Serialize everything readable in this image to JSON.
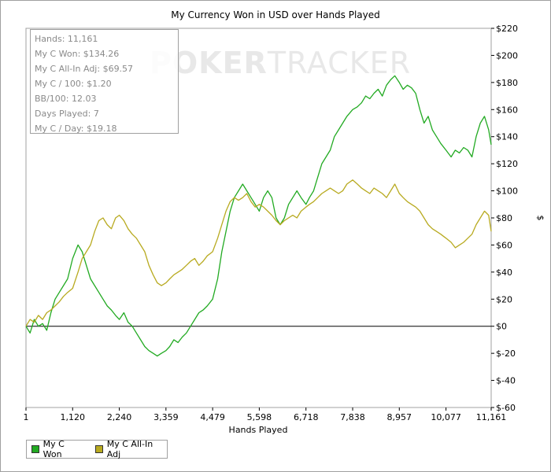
{
  "chart_data": {
    "type": "line",
    "title": "My Currency Won in USD over Hands Played",
    "xlabel": "Hands Played",
    "ylabel": "$",
    "xlim": [
      1,
      11161
    ],
    "ylim": [
      -60,
      220
    ],
    "xticks": [
      1,
      1120,
      2240,
      3359,
      4479,
      5598,
      6718,
      7838,
      8957,
      10077,
      11161
    ],
    "xtick_labels": [
      "1",
      "1,120",
      "2,240",
      "3,359",
      "4,479",
      "5,598",
      "6,718",
      "7,838",
      "8,957",
      "10,077",
      "11,161"
    ],
    "yticks": [
      -60,
      -40,
      -20,
      0,
      20,
      40,
      60,
      80,
      100,
      120,
      140,
      160,
      180,
      200,
      220
    ],
    "ytick_labels": [
      "$-60",
      "$-40",
      "$-20",
      "$0",
      "$20",
      "$40",
      "$60",
      "$80",
      "$100",
      "$120",
      "$140",
      "$160",
      "$180",
      "$200",
      "$220"
    ],
    "grid": false,
    "legend_position": "bottom-left",
    "series": [
      {
        "name": "My C Won",
        "color": "#22aa22",
        "x": [
          1,
          100,
          200,
          300,
          400,
          500,
          600,
          700,
          800,
          900,
          1000,
          1120,
          1250,
          1350,
          1450,
          1550,
          1650,
          1750,
          1850,
          1950,
          2050,
          2150,
          2240,
          2350,
          2450,
          2550,
          2650,
          2750,
          2850,
          2950,
          3050,
          3150,
          3250,
          3359,
          3450,
          3550,
          3650,
          3750,
          3850,
          3950,
          4050,
          4150,
          4250,
          4350,
          4479,
          4600,
          4700,
          4800,
          4900,
          5000,
          5100,
          5200,
          5300,
          5400,
          5500,
          5598,
          5700,
          5800,
          5900,
          6000,
          6100,
          6200,
          6300,
          6400,
          6500,
          6600,
          6718,
          6800,
          6900,
          7000,
          7100,
          7200,
          7300,
          7400,
          7500,
          7600,
          7700,
          7838,
          7950,
          8050,
          8150,
          8250,
          8350,
          8450,
          8550,
          8650,
          8750,
          8850,
          8957,
          9050,
          9150,
          9250,
          9350,
          9450,
          9550,
          9650,
          9750,
          9850,
          9950,
          10077,
          10200,
          10300,
          10400,
          10500,
          10600,
          10700,
          10800,
          10900,
          11000,
          11100,
          11161
        ],
        "y": [
          0,
          -5,
          5,
          0,
          2,
          -3,
          10,
          20,
          25,
          30,
          35,
          50,
          60,
          55,
          45,
          35,
          30,
          25,
          20,
          15,
          12,
          8,
          5,
          10,
          3,
          0,
          -5,
          -10,
          -15,
          -18,
          -20,
          -22,
          -20,
          -18,
          -15,
          -10,
          -12,
          -8,
          -5,
          0,
          5,
          10,
          12,
          15,
          20,
          35,
          55,
          70,
          85,
          95,
          100,
          105,
          100,
          95,
          90,
          85,
          95,
          100,
          95,
          80,
          75,
          80,
          90,
          95,
          100,
          95,
          90,
          95,
          100,
          110,
          120,
          125,
          130,
          140,
          145,
          150,
          155,
          160,
          162,
          165,
          170,
          168,
          172,
          175,
          170,
          178,
          182,
          185,
          180,
          175,
          178,
          176,
          172,
          160,
          150,
          155,
          145,
          140,
          135,
          130,
          125,
          130,
          128,
          132,
          130,
          125,
          140,
          150,
          155,
          145,
          134
        ]
      },
      {
        "name": "My C All-In Adj",
        "color": "#b8aa20",
        "x": [
          1,
          100,
          200,
          300,
          400,
          500,
          600,
          700,
          800,
          900,
          1000,
          1120,
          1250,
          1350,
          1450,
          1550,
          1650,
          1750,
          1850,
          1950,
          2050,
          2150,
          2240,
          2350,
          2450,
          2550,
          2650,
          2750,
          2850,
          2950,
          3050,
          3150,
          3250,
          3359,
          3450,
          3550,
          3650,
          3750,
          3850,
          3950,
          4050,
          4150,
          4250,
          4350,
          4479,
          4600,
          4700,
          4800,
          4900,
          5000,
          5100,
          5200,
          5300,
          5400,
          5500,
          5598,
          5700,
          5800,
          5900,
          6000,
          6100,
          6200,
          6300,
          6400,
          6500,
          6600,
          6718,
          6800,
          6900,
          7000,
          7100,
          7200,
          7300,
          7400,
          7500,
          7600,
          7700,
          7838,
          7950,
          8050,
          8150,
          8250,
          8350,
          8450,
          8550,
          8650,
          8750,
          8850,
          8957,
          9050,
          9150,
          9250,
          9350,
          9450,
          9550,
          9650,
          9750,
          9850,
          9950,
          10077,
          10200,
          10300,
          10400,
          10500,
          10600,
          10700,
          10800,
          10900,
          11000,
          11100,
          11161
        ],
        "y": [
          0,
          5,
          3,
          8,
          5,
          10,
          12,
          15,
          18,
          22,
          25,
          28,
          40,
          50,
          55,
          60,
          70,
          78,
          80,
          75,
          72,
          80,
          82,
          78,
          72,
          68,
          65,
          60,
          55,
          45,
          38,
          32,
          30,
          32,
          35,
          38,
          40,
          42,
          45,
          48,
          50,
          45,
          48,
          52,
          55,
          65,
          75,
          85,
          92,
          95,
          93,
          95,
          98,
          92,
          88,
          90,
          88,
          85,
          82,
          78,
          75,
          78,
          80,
          82,
          80,
          85,
          88,
          90,
          92,
          95,
          98,
          100,
          102,
          100,
          98,
          100,
          105,
          108,
          105,
          102,
          100,
          98,
          102,
          100,
          98,
          95,
          100,
          105,
          98,
          95,
          92,
          90,
          88,
          85,
          80,
          75,
          72,
          70,
          68,
          65,
          62,
          58,
          60,
          62,
          65,
          68,
          75,
          80,
          85,
          82,
          70
        ]
      }
    ]
  },
  "stats": [
    "Hands: 11,161",
    "My C Won: $134.26",
    "My C All-In Adj: $69.57",
    "My C / 100: $1.20",
    "BB/100: 12.03",
    "Days Played: 7",
    "My C / Day: $19.18"
  ],
  "watermark": {
    "bold": "POKER",
    "light": "TRACKER"
  },
  "legend": [
    {
      "label": "My C Won",
      "color": "#22aa22"
    },
    {
      "label": "My C All-In Adj",
      "color": "#b8aa20"
    }
  ]
}
